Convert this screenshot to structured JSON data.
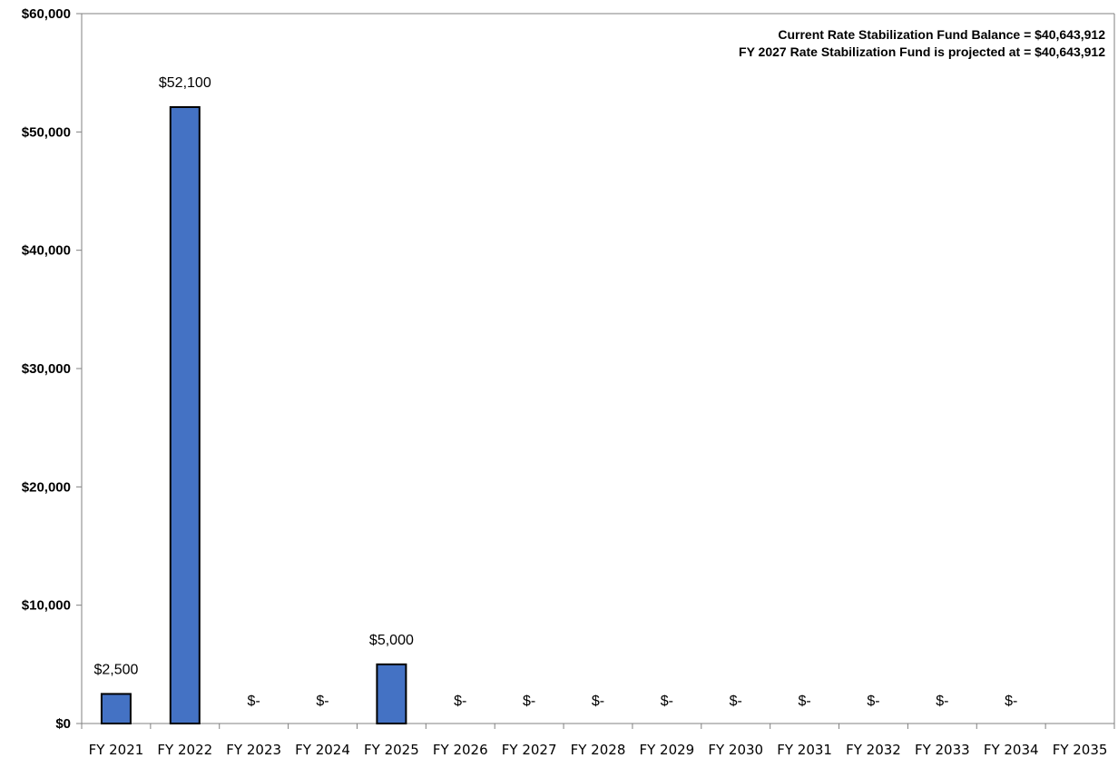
{
  "chart_data": {
    "type": "bar",
    "categories": [
      "FY 2021",
      "FY 2022",
      "FY 2023",
      "FY 2024",
      "FY 2025",
      "FY 2026",
      "FY 2027",
      "FY 2028",
      "FY 2029",
      "FY 2030",
      "FY 2031",
      "FY 2032",
      "FY 2033",
      "FY 2034",
      "FY 2035"
    ],
    "values": [
      2500,
      52100,
      0,
      0,
      5000,
      0,
      0,
      0,
      0,
      0,
      0,
      0,
      0,
      0,
      null
    ],
    "data_labels": [
      "$2,500",
      "$52,100",
      "$-",
      "$-",
      "$5,000",
      "$-",
      "$-",
      "$-",
      "$-",
      "$-",
      "$-",
      "$-",
      "$-",
      "$-",
      ""
    ],
    "ylim": [
      0,
      60000
    ],
    "yticks": [
      0,
      10000,
      20000,
      30000,
      40000,
      50000,
      60000
    ],
    "ytick_labels": [
      "$0",
      "$10,000",
      "$20,000",
      "$30,000",
      "$40,000",
      "$50,000",
      "$60,000"
    ],
    "grid": false,
    "bar_color": "#4472C4",
    "annotations": [
      "Current Rate Stabilization Fund Balance = $40,643,912",
      "FY 2027 Rate Stabilization Fund is projected at = $40,643,912"
    ]
  }
}
